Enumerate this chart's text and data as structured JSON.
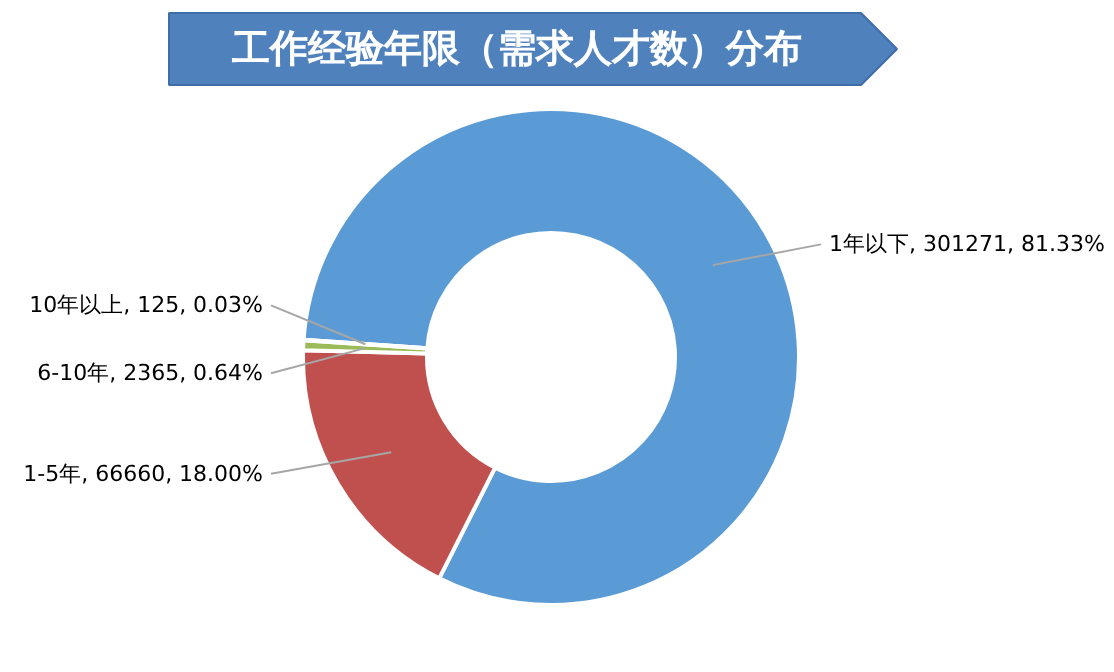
{
  "chart_data": {
    "type": "donut",
    "title": "工作经验年限（需求人才数）分布",
    "categories": [
      "1年以下",
      "1-5年",
      "6-10年",
      "10年以上"
    ],
    "values": [
      301271,
      66660,
      2365,
      125
    ],
    "value_labels": [
      "301271, 81.33%",
      "66660, 18.00%",
      "2365, 0.64%",
      "125, 0.03%"
    ],
    "colors": [
      "#5b9bd5",
      "#c0504d",
      "#9bbb59",
      "#8064a2"
    ]
  }
}
